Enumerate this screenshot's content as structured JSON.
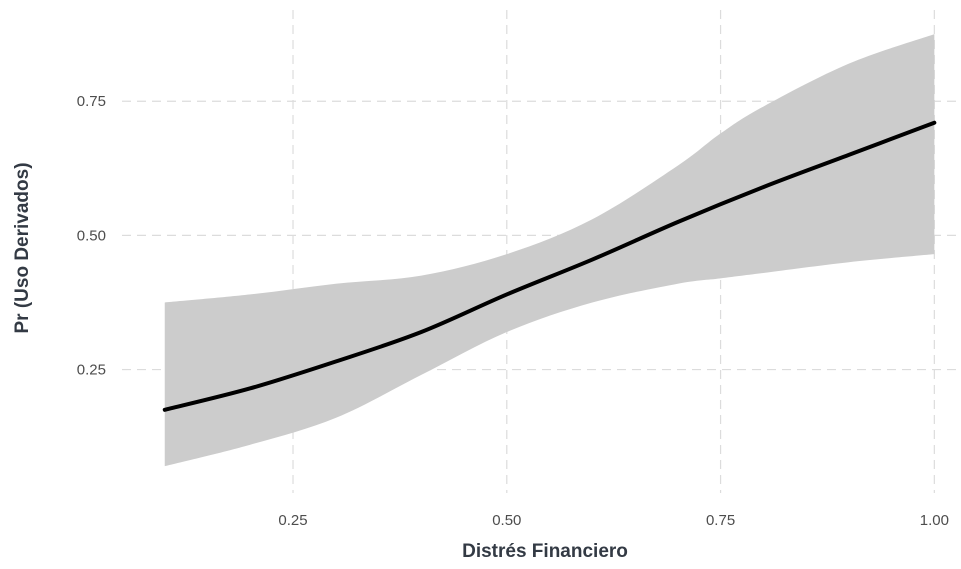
{
  "chart_data": {
    "type": "line",
    "title": "",
    "xlabel": "Distrés Financiero",
    "ylabel": "Pr (Uso Derivados)",
    "xlim": [
      0.05,
      1.03
    ],
    "ylim": [
      0.02,
      0.92
    ],
    "x_ticks": [
      0.25,
      0.5,
      0.75,
      1.0
    ],
    "x_tick_labels": [
      "0.25",
      "0.50",
      "0.75",
      "1.00"
    ],
    "y_ticks": [
      0.25,
      0.5,
      0.75
    ],
    "y_tick_labels": [
      "0.25",
      "0.50",
      "0.75"
    ],
    "grid": true,
    "legend": "none",
    "series": [
      {
        "kind": "ribbon",
        "x": [
          0.1,
          0.2,
          0.3,
          0.4,
          0.5,
          0.6,
          0.7,
          0.75,
          0.8,
          0.9,
          1.0
        ],
        "lower": [
          0.07,
          0.11,
          0.16,
          0.24,
          0.32,
          0.375,
          0.41,
          0.42,
          0.43,
          0.45,
          0.465
        ],
        "upper": [
          0.375,
          0.39,
          0.41,
          0.425,
          0.465,
          0.53,
          0.63,
          0.69,
          0.74,
          0.82,
          0.875
        ]
      },
      {
        "kind": "line",
        "x": [
          0.1,
          0.2,
          0.3,
          0.4,
          0.5,
          0.6,
          0.7,
          0.8,
          0.9,
          1.0
        ],
        "y": [
          0.175,
          0.215,
          0.265,
          0.32,
          0.39,
          0.455,
          0.525,
          0.59,
          0.65,
          0.71
        ]
      }
    ],
    "colors": {
      "ribbon": "#cccccc",
      "line": "#000000",
      "grid": "#dcdcdc"
    }
  }
}
